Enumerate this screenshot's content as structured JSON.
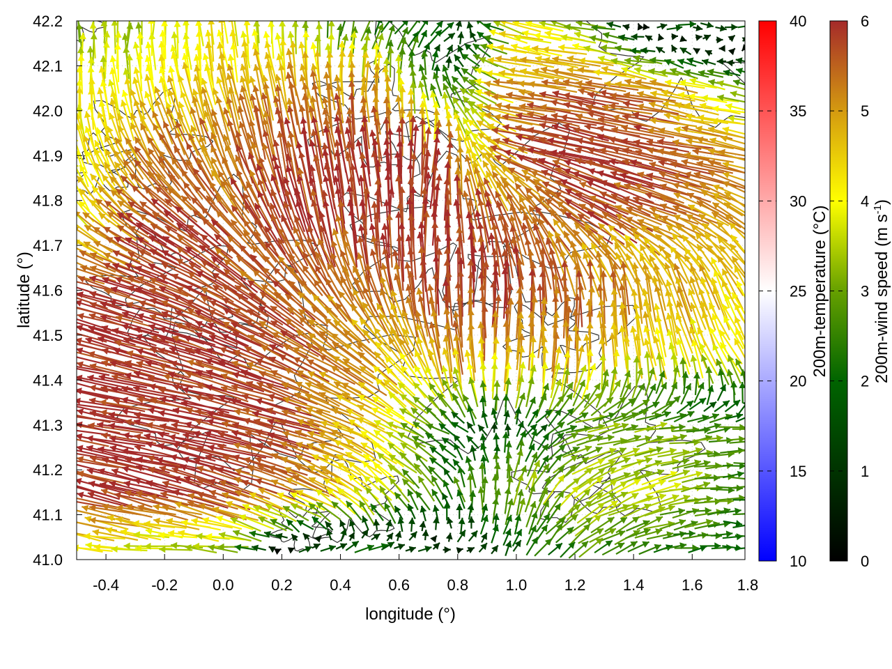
{
  "chart_data": {
    "type": "vector-field",
    "xlabel": "longitude (°)",
    "ylabel": "latitude (°)",
    "xlim": [
      -0.5,
      1.78
    ],
    "ylim": [
      41.0,
      42.2
    ],
    "xticks": [
      "-0.4",
      "-0.2",
      "0.0",
      "0.2",
      "0.4",
      "0.6",
      "0.8",
      "1.0",
      "1.2",
      "1.4",
      "1.6",
      "1.8"
    ],
    "xtick_values": [
      -0.4,
      -0.2,
      0.0,
      0.2,
      0.4,
      0.6,
      0.8,
      1.0,
      1.2,
      1.4,
      1.6,
      1.8
    ],
    "yticks": [
      "41.0",
      "41.1",
      "41.2",
      "41.3",
      "41.4",
      "41.5",
      "41.6",
      "41.7",
      "41.8",
      "41.9",
      "42.0",
      "42.1",
      "42.2"
    ],
    "ytick_values": [
      41.0,
      41.1,
      41.2,
      41.3,
      41.4,
      41.5,
      41.6,
      41.7,
      41.8,
      41.9,
      42.0,
      42.1,
      42.2
    ],
    "grid": true,
    "temperature_colorbar": {
      "label": "200m-temperature (°C)",
      "range": [
        10,
        40
      ],
      "ticks": [
        "10",
        "15",
        "20",
        "25",
        "30",
        "35",
        "40"
      ],
      "tick_values": [
        10,
        15,
        20,
        25,
        30,
        35,
        40
      ],
      "colors": [
        "#0000ff",
        "#ffffff",
        "#ff0000"
      ]
    },
    "wind_colorbar": {
      "label": "200m-wind speed (m s",
      "label_sup": "-1",
      "label_end": ")",
      "range": [
        0,
        6
      ],
      "ticks": [
        "0",
        "1",
        "2",
        "3",
        "4",
        "5",
        "6"
      ],
      "tick_values": [
        0,
        1,
        2,
        3,
        4,
        5,
        6
      ],
      "colors": [
        "#000000",
        "#003300",
        "#006400",
        "#66a000",
        "#ffff00",
        "#d49a10",
        "#a52a2a"
      ]
    },
    "wind_field": {
      "units": "m s-1",
      "lon": [
        -0.5,
        -0.25,
        0.0,
        0.25,
        0.5,
        0.75,
        1.0,
        1.25,
        1.5,
        1.75
      ],
      "lat": [
        42.2,
        42.05,
        41.9,
        41.75,
        41.6,
        41.45,
        41.3,
        41.15,
        41.0
      ],
      "uv": [
        [
          [
            0,
            3
          ],
          [
            0.5,
            3.5
          ],
          [
            -0.5,
            4
          ],
          [
            0,
            3
          ],
          [
            1,
            2
          ],
          [
            2,
            1
          ],
          [
            -4,
            1
          ],
          [
            -3,
            0.5
          ],
          [
            2,
            0
          ],
          [
            2,
            0
          ]
        ],
        [
          [
            0,
            4
          ],
          [
            -1,
            4
          ],
          [
            -1,
            4.5
          ],
          [
            -1,
            5
          ],
          [
            0,
            5
          ],
          [
            -1,
            2
          ],
          [
            -5,
            0.5
          ],
          [
            -5.5,
            1
          ],
          [
            -5,
            1
          ],
          [
            -3,
            0.5
          ]
        ],
        [
          [
            -1,
            4
          ],
          [
            -3,
            4.5
          ],
          [
            -2,
            5
          ],
          [
            -1,
            5.8
          ],
          [
            -1,
            6
          ],
          [
            1,
            6
          ],
          [
            -5.5,
            1.5
          ],
          [
            -5.8,
            1.5
          ],
          [
            -5.8,
            1.2
          ],
          [
            -5,
            1
          ]
        ],
        [
          [
            -3,
            3
          ],
          [
            -5,
            3
          ],
          [
            -4,
            4
          ],
          [
            -2,
            5.5
          ],
          [
            0,
            6
          ],
          [
            0,
            6
          ],
          [
            -2,
            5.5
          ],
          [
            -5,
            3
          ],
          [
            -5,
            2
          ],
          [
            -4,
            3
          ]
        ],
        [
          [
            -5.8,
            1.5
          ],
          [
            -5.5,
            2
          ],
          [
            -5,
            3
          ],
          [
            -4,
            4
          ],
          [
            -2,
            5
          ],
          [
            0,
            6
          ],
          [
            0,
            5.8
          ],
          [
            0,
            5.5
          ],
          [
            -1,
            5
          ],
          [
            -2,
            4
          ]
        ],
        [
          [
            -5.8,
            1.5
          ],
          [
            -5.8,
            1.5
          ],
          [
            -5.5,
            2
          ],
          [
            -5,
            2.5
          ],
          [
            -4,
            3
          ],
          [
            -1,
            5
          ],
          [
            0.5,
            5
          ],
          [
            0,
            5
          ],
          [
            -1,
            4
          ],
          [
            -2,
            3.5
          ]
        ],
        [
          [
            -5.9,
            1
          ],
          [
            -5.9,
            1
          ],
          [
            -5.8,
            1.2
          ],
          [
            -5.5,
            1.5
          ],
          [
            -4,
            2
          ],
          [
            -2,
            1
          ],
          [
            0.5,
            1.5
          ],
          [
            3,
            0.5
          ],
          [
            3,
            0.5
          ],
          [
            2.5,
            0.3
          ]
        ],
        [
          [
            -5.8,
            1.5
          ],
          [
            -5.8,
            1.5
          ],
          [
            -5.5,
            2
          ],
          [
            -5,
            2
          ],
          [
            -3,
            3
          ],
          [
            -1,
            2
          ],
          [
            0.5,
            3.5
          ],
          [
            3,
            2
          ],
          [
            3.5,
            1
          ],
          [
            2.5,
            0
          ]
        ],
        [
          [
            -4,
            0.5
          ],
          [
            -3,
            0
          ],
          [
            -3,
            0
          ],
          [
            2,
            0
          ],
          [
            3,
            0
          ],
          [
            1,
            0
          ],
          [
            1,
            1
          ],
          [
            2,
            1.5
          ],
          [
            2,
            0.5
          ],
          [
            2,
            0
          ]
        ]
      ]
    }
  }
}
